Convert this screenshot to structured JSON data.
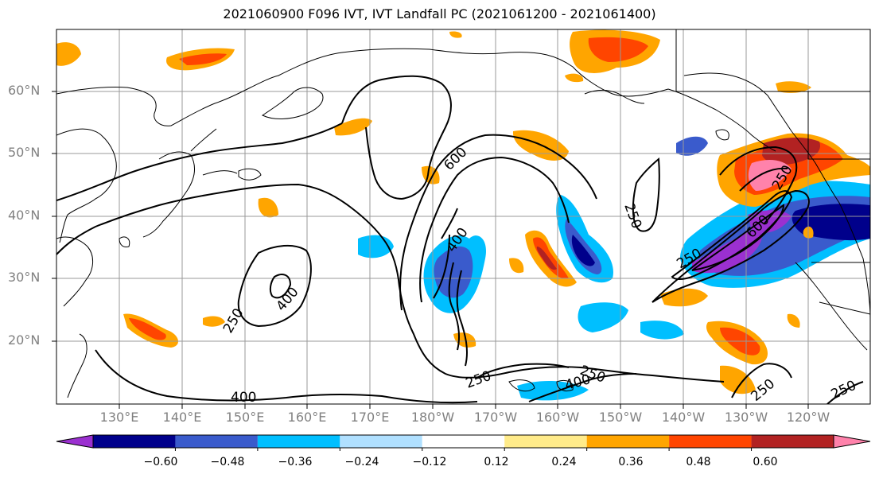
{
  "title": "2021060900 F096 IVT, IVT Landfall PC (2021061200 - 2021061400)",
  "lat_labels": [
    "60°N",
    "50°N",
    "40°N",
    "30°N",
    "20°N"
  ],
  "lon_labels": [
    "130°E",
    "140°E",
    "150°E",
    "160°E",
    "170°E",
    "180°W",
    "170°W",
    "160°W",
    "150°W",
    "140°W",
    "130°W",
    "120°W"
  ],
  "contour_labels": [
    "600",
    "400",
    "400",
    "250",
    "250",
    "250",
    "250",
    "400",
    "400",
    "250",
    "250",
    "250",
    "600",
    "250"
  ],
  "colorbar": {
    "colors": [
      "#9b30d0",
      "#00008b",
      "#3a5bcc",
      "#00bfff",
      "#b0e0ff",
      "#ffffff",
      "#ffeb8a",
      "#ffa500",
      "#ff4500",
      "#b22222",
      "#ff82ab"
    ],
    "tick_labels": [
      "−0.60",
      "−0.48",
      "−0.36",
      "−0.24",
      "−0.12",
      "0.12",
      "0.24",
      "0.36",
      "0.48",
      "0.60"
    ]
  }
}
